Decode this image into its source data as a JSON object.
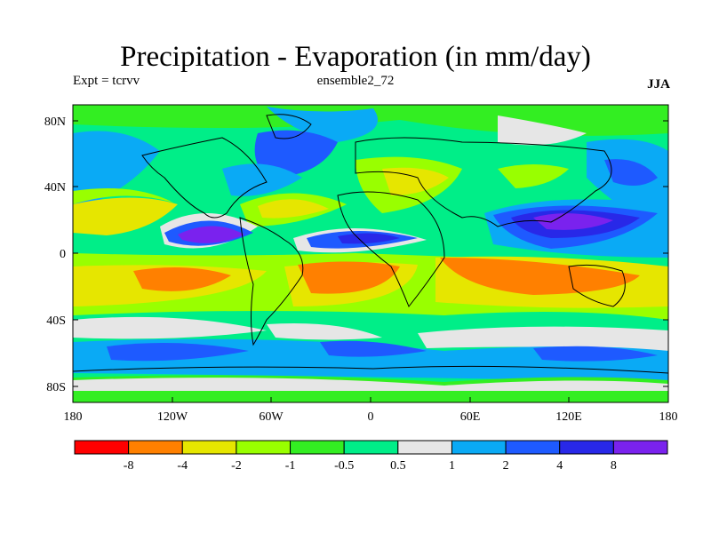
{
  "header": {
    "title": "Precipitation - Evaporation (in mm/day)",
    "left_label": "Expt = tcrvv",
    "center_label": "ensemble2_72",
    "right_label": "JJA"
  },
  "axes": {
    "lat_ticks": [
      "80N",
      "40N",
      "0",
      "40S",
      "80S"
    ],
    "lon_ticks": [
      "180",
      "120W",
      "60W",
      "0",
      "60E",
      "120E",
      "180"
    ]
  },
  "colorbar": {
    "colors": [
      "#ff0000",
      "#ff8000",
      "#e6e600",
      "#99ff00",
      "#33ee22",
      "#00ee88",
      "#e6e6e6",
      "#0aaaf5",
      "#1e5aff",
      "#2828e8",
      "#7a22ee"
    ],
    "labels": [
      "-8",
      "-4",
      "-2",
      "-1",
      "-0.5",
      "0.5",
      "1",
      "2",
      "4",
      "8"
    ]
  }
}
